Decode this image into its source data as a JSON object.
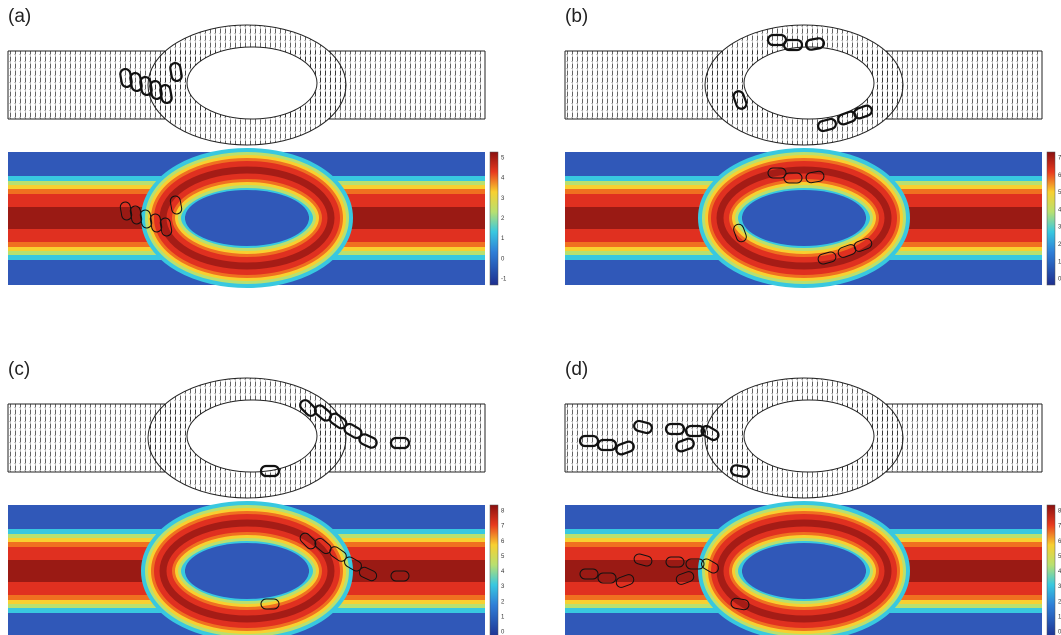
{
  "panels": [
    {
      "label": "(a)",
      "colorbar_ticks": [
        5,
        4,
        3,
        2,
        1,
        0,
        -1
      ]
    },
    {
      "label": "(b)",
      "colorbar_ticks": [
        7,
        6,
        5,
        4,
        3,
        2,
        1,
        0
      ]
    },
    {
      "label": "(c)",
      "colorbar_ticks": [
        8,
        7,
        6,
        5,
        4,
        3,
        2,
        1,
        0
      ]
    },
    {
      "label": "(d)",
      "colorbar_ticks": [
        8,
        7,
        6,
        5,
        4,
        3,
        2,
        1,
        0
      ]
    }
  ]
}
